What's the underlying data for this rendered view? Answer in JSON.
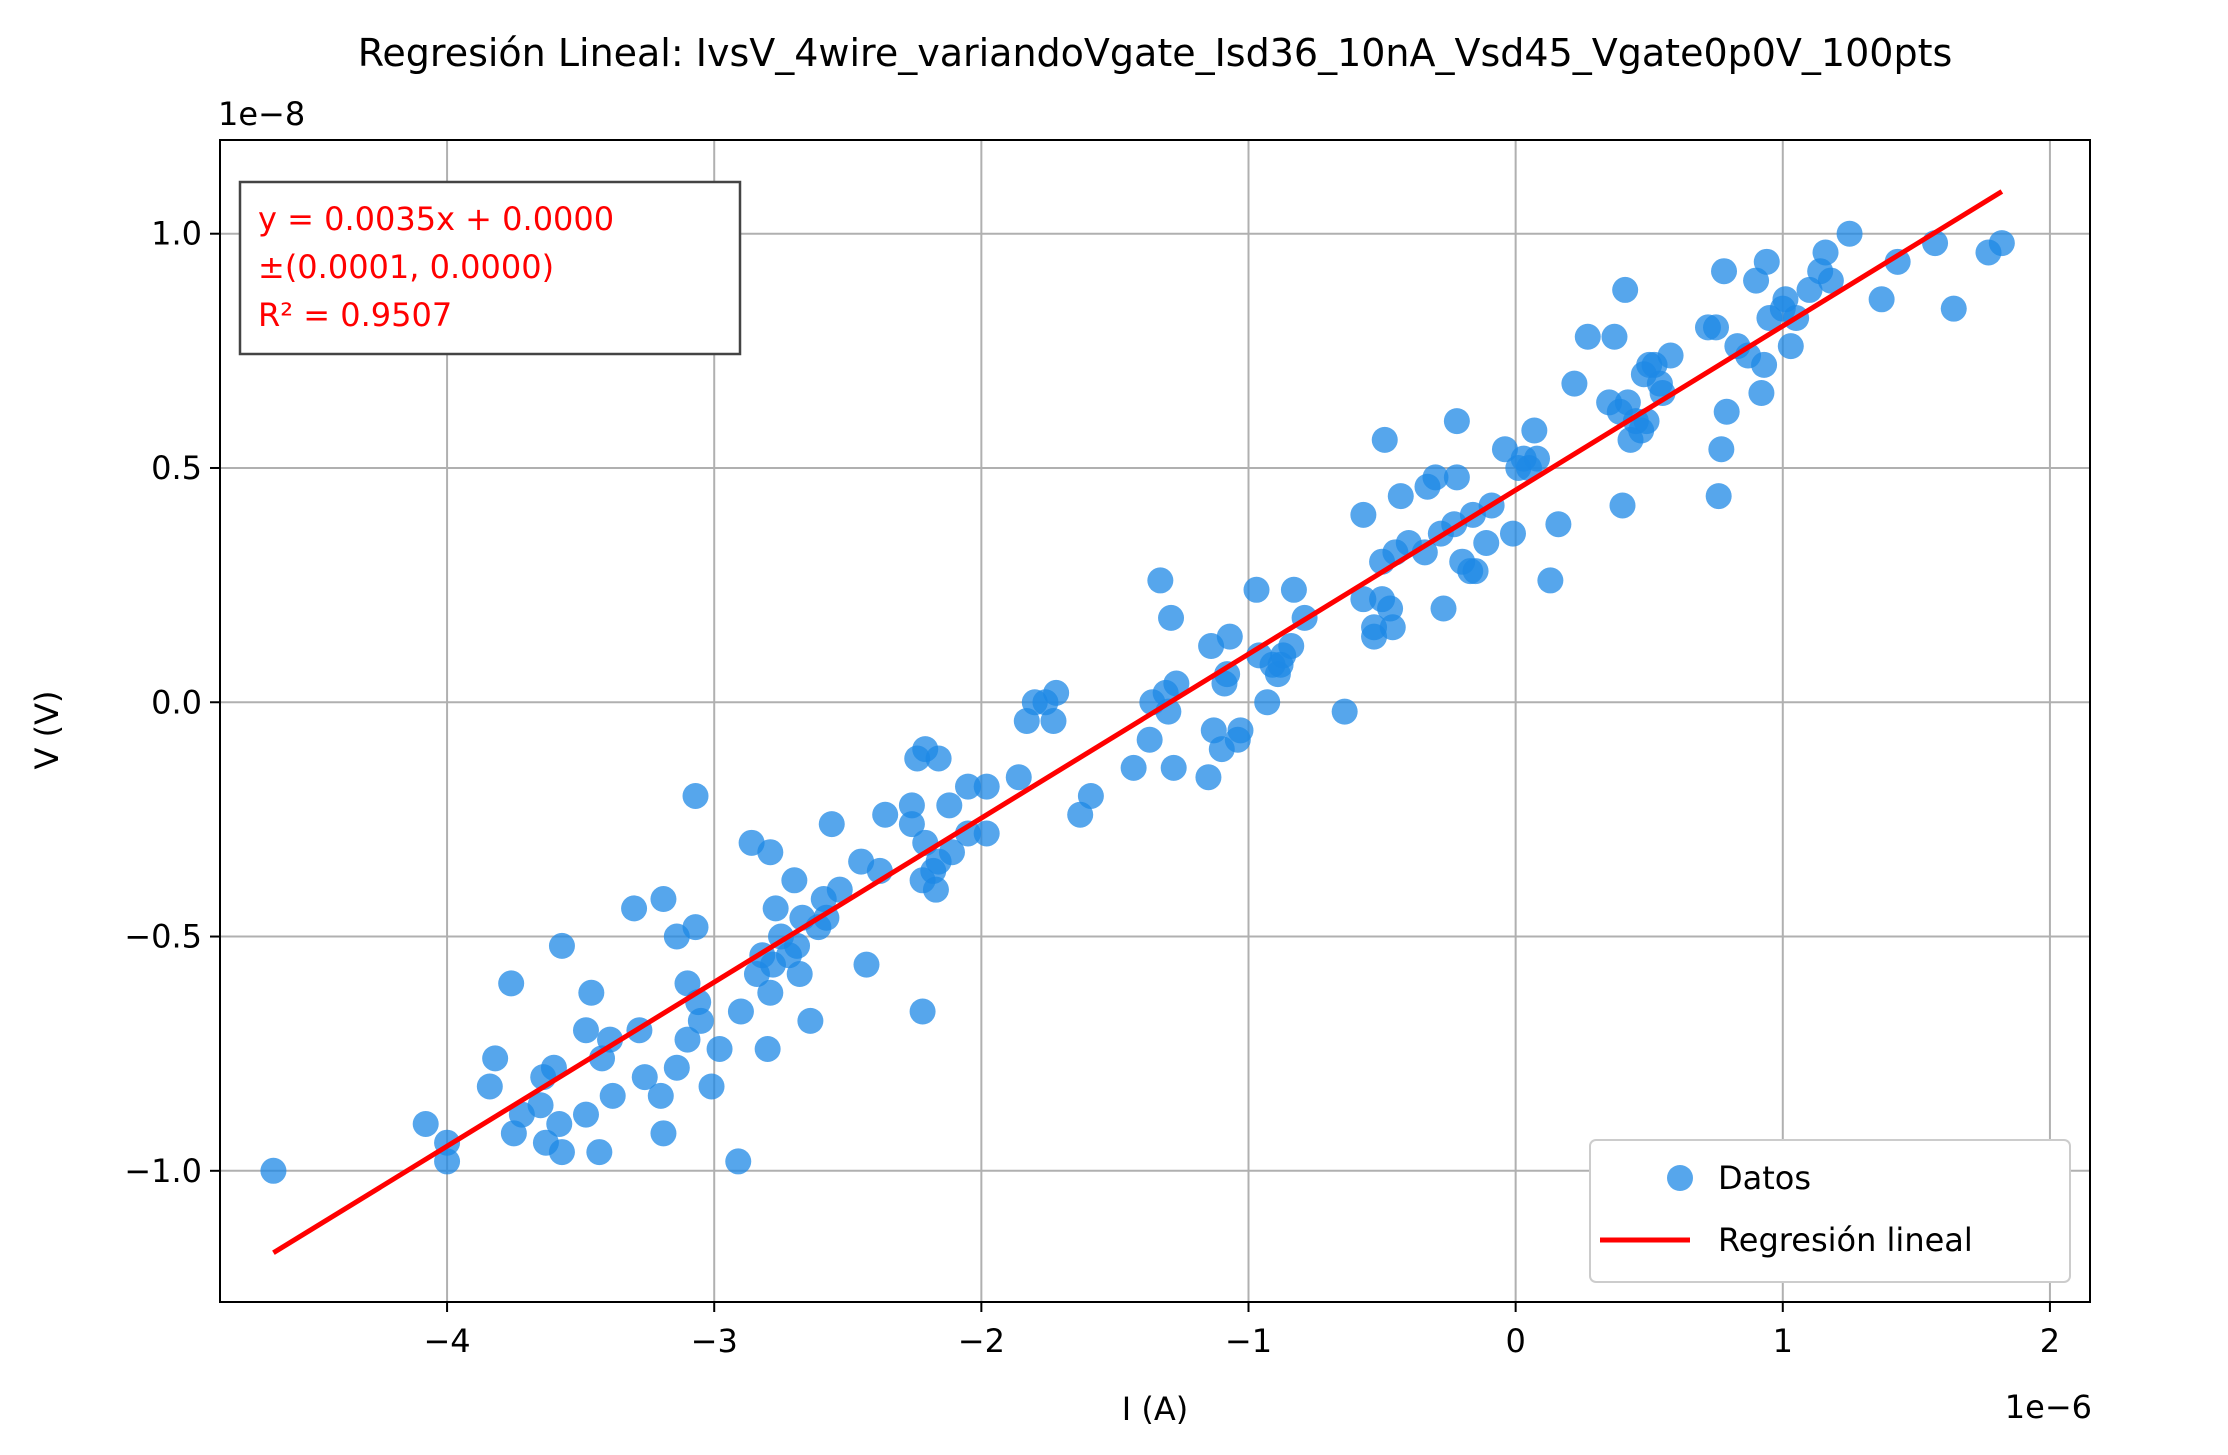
{
  "chart_data": {
    "type": "scatter",
    "title": "Regresión Lineal: IvsV_4wire_variandoVgate_Isd36_10nA_Vsd45_Vgate0p0V_100pts",
    "xlabel": "I (A)",
    "ylabel": "V (V)",
    "x_offset_label": "1e−6",
    "y_offset_label": "1e−8",
    "xlim": [
      -4.85,
      2.15
    ],
    "ylim": [
      -1.28,
      1.2
    ],
    "x_ticks": [
      {
        "value": -4,
        "label": "−4"
      },
      {
        "value": -3,
        "label": "−3"
      },
      {
        "value": -2,
        "label": "−2"
      },
      {
        "value": -1,
        "label": "−1"
      },
      {
        "value": 0,
        "label": "0"
      },
      {
        "value": 1,
        "label": "1"
      },
      {
        "value": 2,
        "label": "2"
      }
    ],
    "y_ticks": [
      {
        "value": -1.0,
        "label": "−1.0"
      },
      {
        "value": -0.5,
        "label": "−0.5"
      },
      {
        "value": 0.0,
        "label": "0.0"
      },
      {
        "value": 0.5,
        "label": "0.5"
      },
      {
        "value": 1.0,
        "label": "1.0"
      }
    ],
    "grid": true,
    "legend_position": "bottom-right",
    "annotation": {
      "lines": [
        "y = 0.0035x + 0.0000",
        "±(0.0001, 0.0000)",
        "R² = 0.9507"
      ],
      "color": "#ff0000",
      "position": "top-left"
    },
    "series": [
      {
        "name": "Datos",
        "kind": "scatter",
        "color": "#1e88e5",
        "points": [
          [
            -4.65,
            -1.0
          ],
          [
            -4.08,
            -0.9
          ],
          [
            -4.0,
            -0.94
          ],
          [
            -4.0,
            -0.98
          ],
          [
            -3.84,
            -0.82
          ],
          [
            -3.82,
            -0.76
          ],
          [
            -3.76,
            -0.6
          ],
          [
            -3.75,
            -0.92
          ],
          [
            -3.72,
            -0.88
          ],
          [
            -3.65,
            -0.86
          ],
          [
            -3.64,
            -0.8
          ],
          [
            -3.63,
            -0.94
          ],
          [
            -3.6,
            -0.78
          ],
          [
            -3.58,
            -0.9
          ],
          [
            -3.57,
            -0.96
          ],
          [
            -3.57,
            -0.52
          ],
          [
            -3.48,
            -0.88
          ],
          [
            -3.48,
            -0.7
          ],
          [
            -3.46,
            -0.62
          ],
          [
            -3.43,
            -0.96
          ],
          [
            -3.42,
            -0.76
          ],
          [
            -3.39,
            -0.72
          ],
          [
            -3.38,
            -0.84
          ],
          [
            -3.3,
            -0.44
          ],
          [
            -3.28,
            -0.7
          ],
          [
            -3.26,
            -0.8
          ],
          [
            -3.2,
            -0.84
          ],
          [
            -3.19,
            -0.92
          ],
          [
            -3.19,
            -0.42
          ],
          [
            -3.14,
            -0.5
          ],
          [
            -3.14,
            -0.78
          ],
          [
            -3.1,
            -0.6
          ],
          [
            -3.1,
            -0.72
          ],
          [
            -3.07,
            -0.48
          ],
          [
            -3.07,
            -0.2
          ],
          [
            -3.06,
            -0.64
          ],
          [
            -3.05,
            -0.68
          ],
          [
            -3.01,
            -0.82
          ],
          [
            -2.98,
            -0.74
          ],
          [
            -2.91,
            -0.98
          ],
          [
            -2.9,
            -0.66
          ],
          [
            -2.86,
            -0.3
          ],
          [
            -2.84,
            -0.58
          ],
          [
            -2.82,
            -0.54
          ],
          [
            -2.8,
            -0.74
          ],
          [
            -2.79,
            -0.62
          ],
          [
            -2.79,
            -0.32
          ],
          [
            -2.78,
            -0.56
          ],
          [
            -2.77,
            -0.44
          ],
          [
            -2.75,
            -0.5
          ],
          [
            -2.72,
            -0.54
          ],
          [
            -2.7,
            -0.38
          ],
          [
            -2.69,
            -0.52
          ],
          [
            -2.68,
            -0.58
          ],
          [
            -2.67,
            -0.46
          ],
          [
            -2.64,
            -0.68
          ],
          [
            -2.61,
            -0.48
          ],
          [
            -2.59,
            -0.42
          ],
          [
            -2.58,
            -0.46
          ],
          [
            -2.56,
            -0.26
          ],
          [
            -2.53,
            -0.4
          ],
          [
            -2.45,
            -0.34
          ],
          [
            -2.43,
            -0.56
          ],
          [
            -2.38,
            -0.36
          ],
          [
            -2.36,
            -0.24
          ],
          [
            -2.26,
            -0.22
          ],
          [
            -2.26,
            -0.26
          ],
          [
            -2.24,
            -0.12
          ],
          [
            -2.22,
            -0.38
          ],
          [
            -2.22,
            -0.66
          ],
          [
            -2.21,
            -0.1
          ],
          [
            -2.21,
            -0.3
          ],
          [
            -2.18,
            -0.36
          ],
          [
            -2.17,
            -0.4
          ],
          [
            -2.16,
            -0.12
          ],
          [
            -2.16,
            -0.34
          ],
          [
            -2.12,
            -0.22
          ],
          [
            -2.11,
            -0.32
          ],
          [
            -2.05,
            -0.18
          ],
          [
            -2.05,
            -0.28
          ],
          [
            -1.98,
            -0.28
          ],
          [
            -1.98,
            -0.18
          ],
          [
            -1.86,
            -0.16
          ],
          [
            -1.83,
            -0.04
          ],
          [
            -1.8,
            0.0
          ],
          [
            -1.76,
            0.0
          ],
          [
            -1.73,
            -0.04
          ],
          [
            -1.72,
            0.02
          ],
          [
            -1.63,
            -0.24
          ],
          [
            -1.59,
            -0.2
          ],
          [
            -1.43,
            -0.14
          ],
          [
            -1.37,
            -0.08
          ],
          [
            -1.36,
            0.0
          ],
          [
            -1.33,
            0.26
          ],
          [
            -1.31,
            0.02
          ],
          [
            -1.3,
            -0.02
          ],
          [
            -1.29,
            0.18
          ],
          [
            -1.28,
            -0.14
          ],
          [
            -1.27,
            0.04
          ],
          [
            -1.15,
            -0.16
          ],
          [
            -1.14,
            0.12
          ],
          [
            -1.13,
            -0.06
          ],
          [
            -1.1,
            -0.1
          ],
          [
            -1.09,
            0.04
          ],
          [
            -1.08,
            0.06
          ],
          [
            -1.07,
            0.14
          ],
          [
            -1.04,
            -0.08
          ],
          [
            -1.03,
            -0.06
          ],
          [
            -0.97,
            0.24
          ],
          [
            -0.96,
            0.1
          ],
          [
            -0.93,
            0.0
          ],
          [
            -0.91,
            0.08
          ],
          [
            -0.89,
            0.06
          ],
          [
            -0.88,
            0.08
          ],
          [
            -0.87,
            0.1
          ],
          [
            -0.84,
            0.12
          ],
          [
            -0.83,
            0.24
          ],
          [
            -0.79,
            0.18
          ],
          [
            -0.64,
            -0.02
          ],
          [
            -0.57,
            0.22
          ],
          [
            -0.57,
            0.4
          ],
          [
            -0.53,
            0.14
          ],
          [
            -0.53,
            0.16
          ],
          [
            -0.5,
            0.3
          ],
          [
            -0.5,
            0.22
          ],
          [
            -0.49,
            0.56
          ],
          [
            -0.47,
            0.2
          ],
          [
            -0.46,
            0.16
          ],
          [
            -0.45,
            0.32
          ],
          [
            -0.43,
            0.44
          ],
          [
            -0.4,
            0.34
          ],
          [
            -0.34,
            0.32
          ],
          [
            -0.33,
            0.46
          ],
          [
            -0.3,
            0.48
          ],
          [
            -0.28,
            0.36
          ],
          [
            -0.27,
            0.2
          ],
          [
            -0.23,
            0.38
          ],
          [
            -0.22,
            0.48
          ],
          [
            -0.22,
            0.6
          ],
          [
            -0.2,
            0.3
          ],
          [
            -0.17,
            0.28
          ],
          [
            -0.16,
            0.4
          ],
          [
            -0.15,
            0.28
          ],
          [
            -0.11,
            0.34
          ],
          [
            -0.09,
            0.42
          ],
          [
            -0.04,
            0.54
          ],
          [
            -0.01,
            0.36
          ],
          [
            0.01,
            0.5
          ],
          [
            0.03,
            0.52
          ],
          [
            0.05,
            0.5
          ],
          [
            0.07,
            0.58
          ],
          [
            0.08,
            0.52
          ],
          [
            0.13,
            0.26
          ],
          [
            0.16,
            0.38
          ],
          [
            0.22,
            0.68
          ],
          [
            0.27,
            0.78
          ],
          [
            0.35,
            0.64
          ],
          [
            0.37,
            0.78
          ],
          [
            0.39,
            0.62
          ],
          [
            0.4,
            0.42
          ],
          [
            0.41,
            0.88
          ],
          [
            0.42,
            0.64
          ],
          [
            0.43,
            0.56
          ],
          [
            0.45,
            0.6
          ],
          [
            0.47,
            0.58
          ],
          [
            0.48,
            0.7
          ],
          [
            0.49,
            0.6
          ],
          [
            0.5,
            0.72
          ],
          [
            0.52,
            0.72
          ],
          [
            0.54,
            0.68
          ],
          [
            0.55,
            0.66
          ],
          [
            0.58,
            0.74
          ],
          [
            0.72,
            0.8
          ],
          [
            0.75,
            0.8
          ],
          [
            0.76,
            0.44
          ],
          [
            0.77,
            0.54
          ],
          [
            0.78,
            0.92
          ],
          [
            0.79,
            0.62
          ],
          [
            0.83,
            0.76
          ],
          [
            0.87,
            0.74
          ],
          [
            0.9,
            0.9
          ],
          [
            0.92,
            0.66
          ],
          [
            0.93,
            0.72
          ],
          [
            0.94,
            0.94
          ],
          [
            0.95,
            0.82
          ],
          [
            1.0,
            0.84
          ],
          [
            1.01,
            0.86
          ],
          [
            1.03,
            0.76
          ],
          [
            1.05,
            0.82
          ],
          [
            1.1,
            0.88
          ],
          [
            1.14,
            0.92
          ],
          [
            1.16,
            0.96
          ],
          [
            1.18,
            0.9
          ],
          [
            1.25,
            1.0
          ],
          [
            1.37,
            0.86
          ],
          [
            1.43,
            0.94
          ],
          [
            1.57,
            0.98
          ],
          [
            1.64,
            0.84
          ],
          [
            1.77,
            0.96
          ],
          [
            1.82,
            0.98
          ]
        ]
      },
      {
        "name": "Regresión lineal",
        "kind": "line",
        "color": "#ff0000",
        "points": [
          [
            -4.65,
            -1.175
          ],
          [
            1.82,
            1.09
          ]
        ]
      }
    ]
  }
}
